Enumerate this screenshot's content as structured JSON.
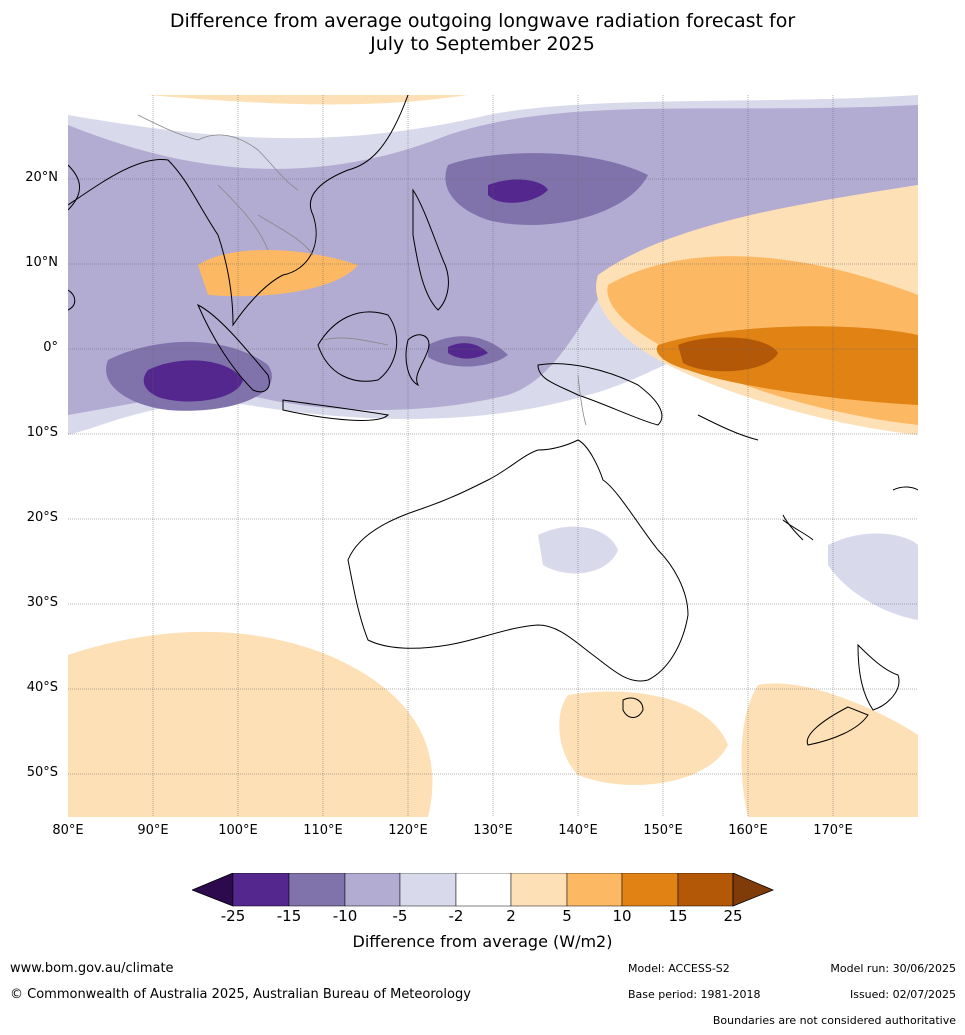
{
  "title_line1": "Difference from average outgoing longwave radiation forecast for",
  "title_line2": "July to September 2025",
  "lat_labels": [
    "20°N",
    "10°N",
    "0°",
    "10°S",
    "20°S",
    "30°S",
    "40°S",
    "50°S"
  ],
  "lon_labels": [
    "80°E",
    "90°E",
    "100°E",
    "110°E",
    "120°E",
    "130°E",
    "140°E",
    "150°E",
    "160°E",
    "170°E"
  ],
  "colorbar": {
    "ticks": [
      "-25",
      "-15",
      "-10",
      "-5",
      "-2",
      "2",
      "5",
      "10",
      "15",
      "25"
    ],
    "colors": [
      "#2d0a4e",
      "#54278f",
      "#8073ac",
      "#b2abd2",
      "#d8daeb",
      "#ffffff",
      "#fee0b6",
      "#fdb863",
      "#e08214",
      "#b35806",
      "#7f3b08"
    ],
    "label": "Difference from average (W/m2)"
  },
  "footer": {
    "website": "www.bom.gov.au/climate",
    "copyright": "© Commonwealth of Australia 2025, Australian Bureau of Meteorology",
    "model": "Model: ACCESS-S2",
    "base_period": "Base period: 1981-2018",
    "model_run": "Model run: 30/06/2025",
    "issued": "Issued: 02/07/2025",
    "disclaimer": "Boundaries are not considered authoritative"
  }
}
